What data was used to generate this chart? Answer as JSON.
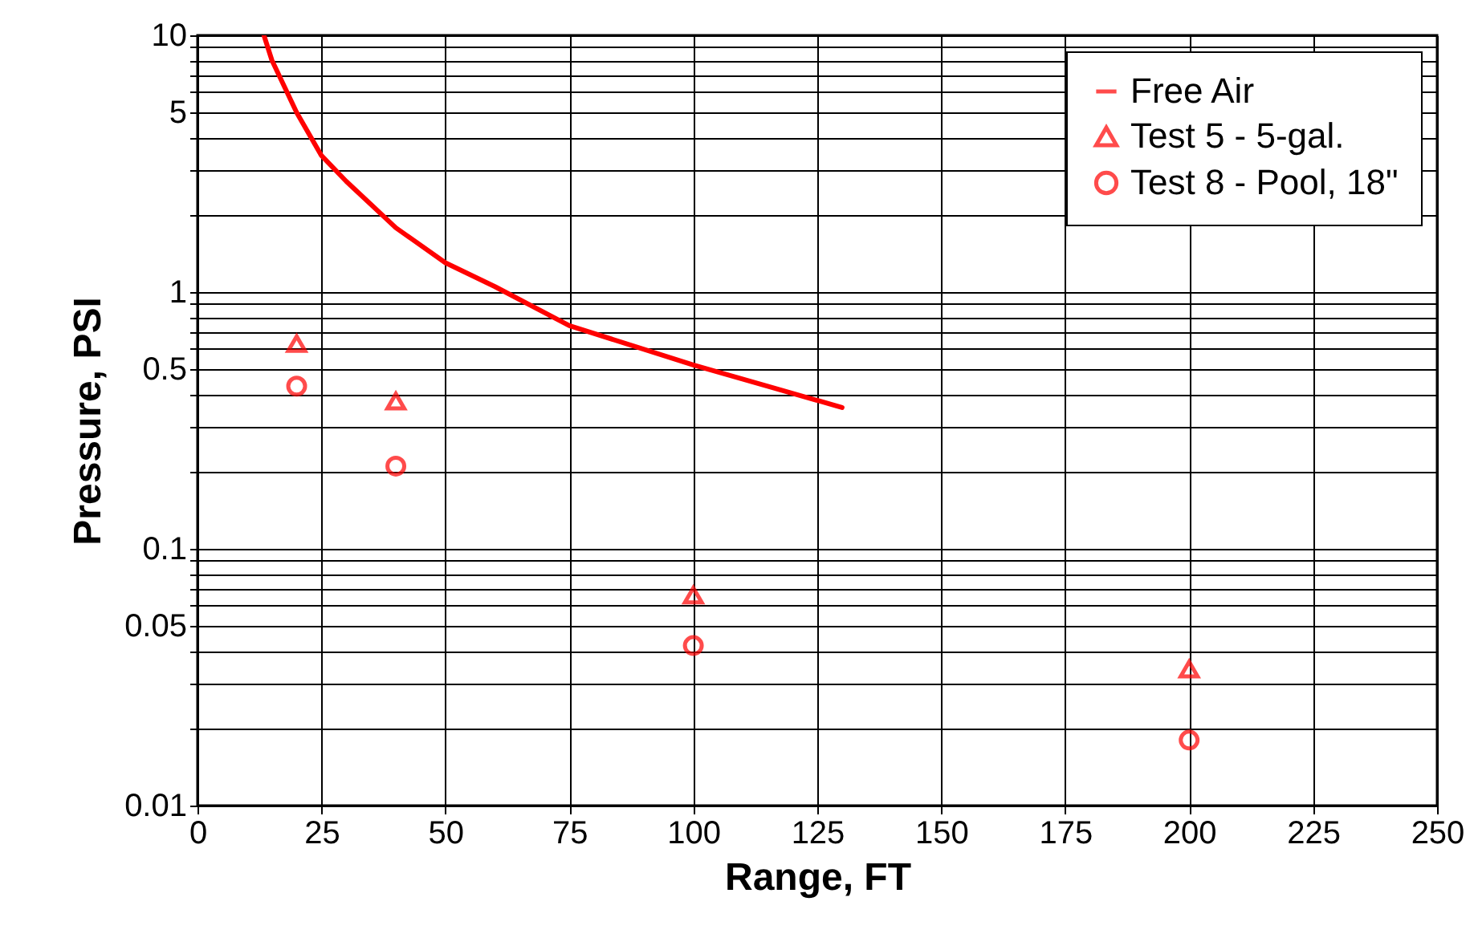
{
  "chart_data": {
    "type": "scatter",
    "xlabel": "Range, FT",
    "ylabel": "Pressure, PSI",
    "log": "y",
    "grid": true,
    "legend": "top right",
    "xlim": [
      0,
      250
    ],
    "xticks": [
      0,
      25,
      50,
      75,
      100,
      125,
      150,
      175,
      200,
      225,
      250
    ],
    "ylim": [
      0.01,
      10
    ],
    "yticks": [
      0.01,
      {
        "value": 0.02,
        "label": null
      },
      {
        "value": 0.03,
        "label": null
      },
      {
        "value": 0.04,
        "label": null
      },
      0.05,
      {
        "value": 0.06,
        "label": null
      },
      {
        "value": 0.07,
        "label": null
      },
      {
        "value": 0.08,
        "label": null
      },
      {
        "value": 0.09,
        "label": null
      },
      0.1,
      {
        "value": 0.2,
        "label": null
      },
      {
        "value": 0.3,
        "label": null
      },
      {
        "value": 0.4,
        "label": null
      },
      0.5,
      {
        "value": 0.6,
        "label": null
      },
      {
        "value": 0.7,
        "label": null
      },
      {
        "value": 0.8,
        "label": null
      },
      {
        "value": 0.9,
        "label": null
      },
      1,
      {
        "value": 2,
        "label": null
      },
      {
        "value": 3,
        "label": null
      },
      {
        "value": 4,
        "label": null
      },
      5,
      {
        "value": 6,
        "label": null
      },
      {
        "value": 7,
        "label": null
      },
      {
        "value": 8,
        "label": null
      },
      {
        "value": 9,
        "label": null
      },
      10
    ],
    "series": [
      {
        "name": "Free Air",
        "type": "line",
        "marker": "none",
        "line_style": "solid",
        "color": "#ff0000",
        "x": [
          13.4,
          15,
          20,
          25,
          30,
          40,
          50,
          60,
          75,
          100,
          115,
          130
        ],
        "values": [
          10,
          8.0,
          5.0,
          3.4,
          2.7,
          1.78,
          1.3,
          1.05,
          0.74,
          0.52,
          0.43,
          0.355
        ]
      },
      {
        "name": "Test 5 - 5-gal.",
        "type": "scatter",
        "marker": "triangle",
        "color": "#ff0000",
        "x": [
          20,
          40,
          100,
          200
        ],
        "values": [
          0.63,
          0.376,
          0.066,
          0.034
        ]
      },
      {
        "name": "Test 8 - Pool, 18\"",
        "type": "scatter",
        "marker": "circle",
        "color": "#ff0000",
        "x": [
          20,
          40,
          100,
          200
        ],
        "values": [
          0.43,
          0.21,
          0.042,
          0.018
        ]
      }
    ]
  }
}
